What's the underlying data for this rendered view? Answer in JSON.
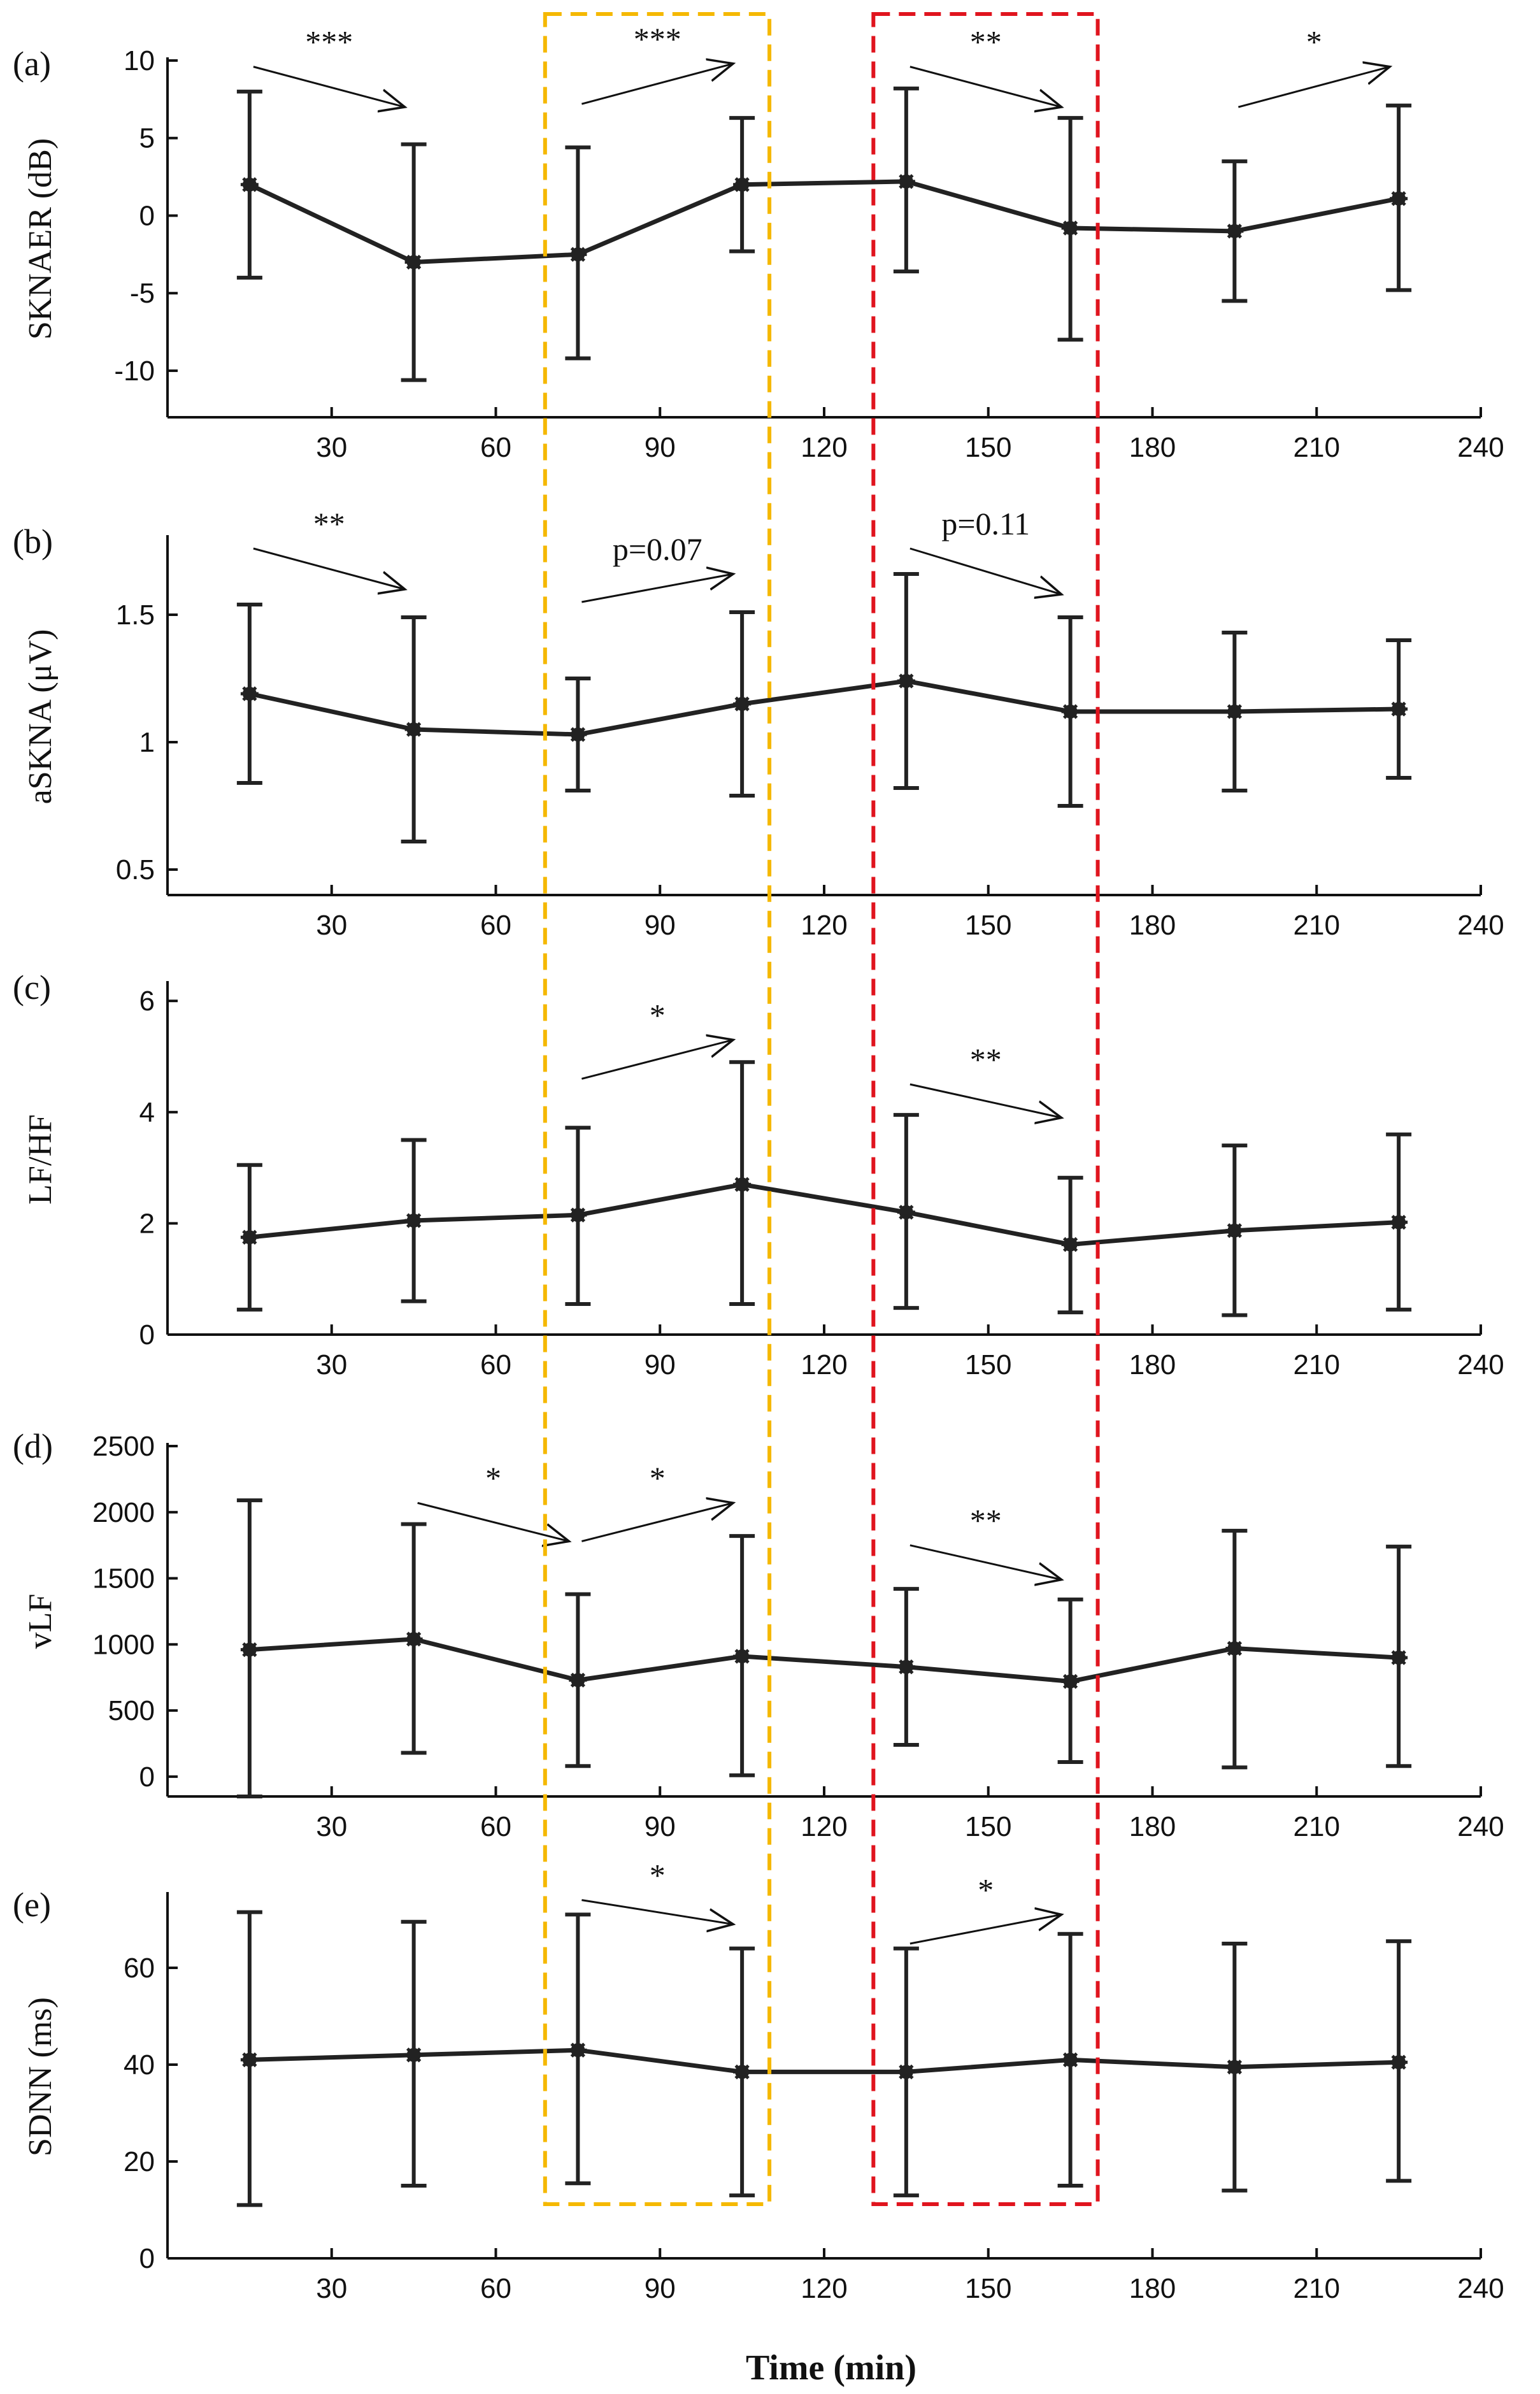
{
  "chart_data": {
    "type": "line",
    "xlabel": "Time (min)",
    "xticks": [
      "30",
      "60",
      "90",
      "120",
      "150",
      "180",
      "210",
      "240"
    ],
    "xlim": [
      0,
      240
    ],
    "highlight_boxes": [
      {
        "color": "#f5b800",
        "x_range": [
          69,
          110
        ],
        "style": "dashed"
      },
      {
        "color": "#e0141e",
        "x_range": [
          129,
          170
        ],
        "style": "dashed"
      }
    ],
    "panels": [
      {
        "label": "(a)",
        "ylabel": "SKNAER (dB)",
        "ylim": [
          -13,
          10
        ],
        "yticks": [
          "10",
          "5",
          "0",
          "-5",
          "-10"
        ],
        "x": [
          15,
          45,
          75,
          105,
          135,
          165,
          195,
          225
        ],
        "mean": [
          2.0,
          -3.0,
          -2.5,
          2.0,
          2.2,
          -0.8,
          -1.0,
          1.1
        ],
        "err_low": [
          -4.0,
          -10.6,
          -9.2,
          -2.3,
          -3.6,
          -8.0,
          -5.5,
          -4.8
        ],
        "err_high": [
          8.0,
          4.6,
          4.4,
          6.3,
          8.2,
          6.3,
          3.5,
          7.1
        ],
        "annotations": [
          {
            "text": "***",
            "from": [
              15,
              9.6
            ],
            "to": [
              45,
              7.0
            ]
          },
          {
            "text": "***",
            "from": [
              75,
              7.2
            ],
            "to": [
              105,
              9.8
            ]
          },
          {
            "text": "**",
            "from": [
              135,
              9.6
            ],
            "to": [
              165,
              7.0
            ]
          },
          {
            "text": "*",
            "from": [
              195,
              7.0
            ],
            "to": [
              225,
              9.6
            ]
          }
        ]
      },
      {
        "label": "(b)",
        "ylabel": "aSKNA (μV)",
        "ylim": [
          0.4,
          1.8
        ],
        "yticks": [
          "1.5",
          "1",
          "0.5"
        ],
        "x": [
          15,
          45,
          75,
          105,
          135,
          165,
          195,
          225
        ],
        "mean": [
          1.19,
          1.05,
          1.03,
          1.15,
          1.24,
          1.12,
          1.12,
          1.13
        ],
        "err_low": [
          0.84,
          0.61,
          0.81,
          0.79,
          0.82,
          0.75,
          0.81,
          0.86
        ],
        "err_high": [
          1.54,
          1.49,
          1.25,
          1.51,
          1.66,
          1.49,
          1.43,
          1.4
        ],
        "annotations": [
          {
            "text": "**",
            "from": [
              15,
              1.76
            ],
            "to": [
              45,
              1.6
            ]
          },
          {
            "text": "p=0.07",
            "from": [
              75,
              1.55
            ],
            "to": [
              105,
              1.66
            ]
          },
          {
            "text": "p=0.11",
            "from": [
              135,
              1.76
            ],
            "to": [
              165,
              1.58
            ]
          }
        ]
      },
      {
        "label": "(c)",
        "ylabel": "LF/HF",
        "ylim": [
          0,
          6.3
        ],
        "yticks": [
          "6",
          "4",
          "2",
          "0"
        ],
        "x": [
          15,
          45,
          75,
          105,
          135,
          165,
          195,
          225
        ],
        "mean": [
          1.75,
          2.05,
          2.15,
          2.7,
          2.2,
          1.62,
          1.87,
          2.02
        ],
        "err_low": [
          0.45,
          0.6,
          0.55,
          0.55,
          0.48,
          0.4,
          0.35,
          0.45
        ],
        "err_high": [
          3.05,
          3.5,
          3.72,
          4.9,
          3.95,
          2.82,
          3.4,
          3.6
        ],
        "annotations": [
          {
            "text": "*",
            "from": [
              75,
              4.6
            ],
            "to": [
              105,
              5.3
            ]
          },
          {
            "text": "**",
            "from": [
              135,
              4.5
            ],
            "to": [
              165,
              3.9
            ]
          }
        ]
      },
      {
        "label": "(d)",
        "ylabel": "vLF",
        "ylim": [
          -150,
          2500
        ],
        "yticks": [
          "2500",
          "2000",
          "1500",
          "1000",
          "500",
          "0"
        ],
        "x": [
          15,
          45,
          75,
          105,
          135,
          165,
          195,
          225
        ],
        "mean": [
          960,
          1040,
          730,
          910,
          830,
          720,
          970,
          900
        ],
        "err_low": [
          -150,
          180,
          80,
          10,
          240,
          110,
          70,
          80
        ],
        "err_high": [
          2090,
          1910,
          1380,
          1820,
          1420,
          1340,
          1860,
          1740
        ],
        "annotations": [
          {
            "text": "*",
            "from": [
              45,
              2070
            ],
            "to": [
              75,
              1780
            ]
          },
          {
            "text": "*",
            "from": [
              75,
              1780
            ],
            "to": [
              105,
              2070
            ]
          },
          {
            "text": "**",
            "from": [
              135,
              1750
            ],
            "to": [
              165,
              1490
            ]
          }
        ]
      },
      {
        "label": "(e)",
        "ylabel": "SDNN (ms)",
        "ylim": [
          0,
          75
        ],
        "yticks": [
          "60",
          "40",
          "20",
          "0"
        ],
        "x": [
          15,
          45,
          75,
          105,
          135,
          165,
          195,
          225
        ],
        "mean": [
          41,
          42,
          43,
          38.5,
          38.5,
          41,
          39.5,
          40.5
        ],
        "err_low": [
          11,
          15,
          15.5,
          13,
          13,
          15,
          14,
          16
        ],
        "err_high": [
          71.5,
          69.5,
          71,
          64,
          64,
          67,
          65,
          65.5
        ],
        "annotations": [
          {
            "text": "*",
            "from": [
              75,
              74
            ],
            "to": [
              105,
              69
            ]
          },
          {
            "text": "*",
            "from": [
              135,
              65
            ],
            "to": [
              165,
              71
            ]
          }
        ]
      }
    ]
  }
}
